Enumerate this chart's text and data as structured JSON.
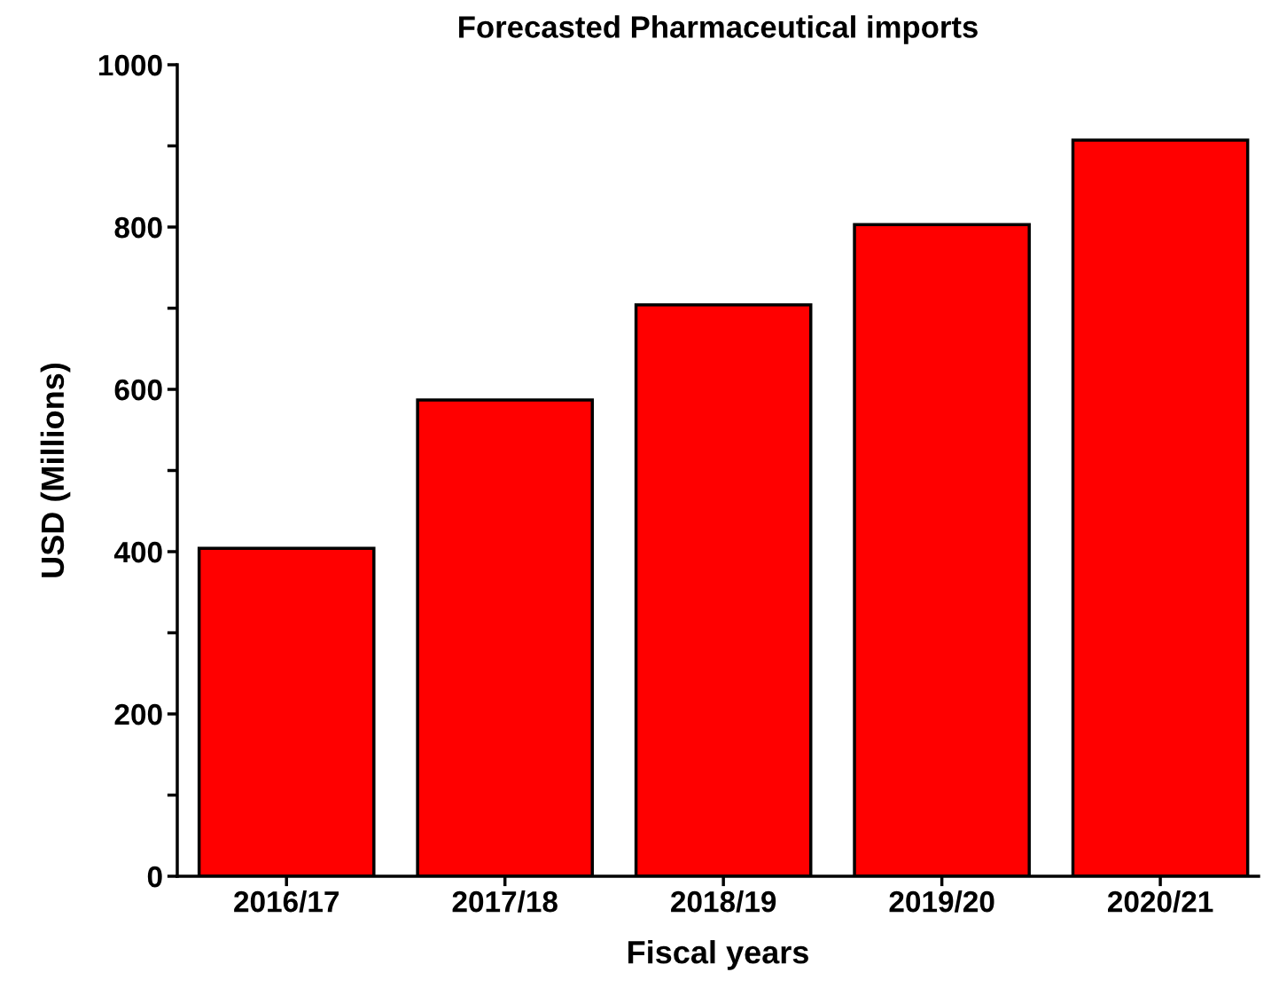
{
  "chart_data": {
    "type": "bar",
    "title": "Forecasted Pharmaceutical imports",
    "xlabel": "Fiscal years",
    "ylabel": "USD (Millions)",
    "categories": [
      "2016/17",
      "2017/18",
      "2018/19",
      "2019/20",
      "2020/21"
    ],
    "values": [
      404,
      587,
      704,
      803,
      907
    ],
    "color": "#ff0000",
    "ylim": [
      0,
      1000
    ],
    "yticks": [
      0,
      {
        "value": 100,
        "label": null
      },
      200,
      {
        "value": 300,
        "label": null
      },
      400,
      {
        "value": 500,
        "label": null
      },
      600,
      {
        "value": 700,
        "label": null
      },
      800,
      {
        "value": 900,
        "label": null
      },
      1000
    ],
    "grid": false,
    "legend": false
  }
}
